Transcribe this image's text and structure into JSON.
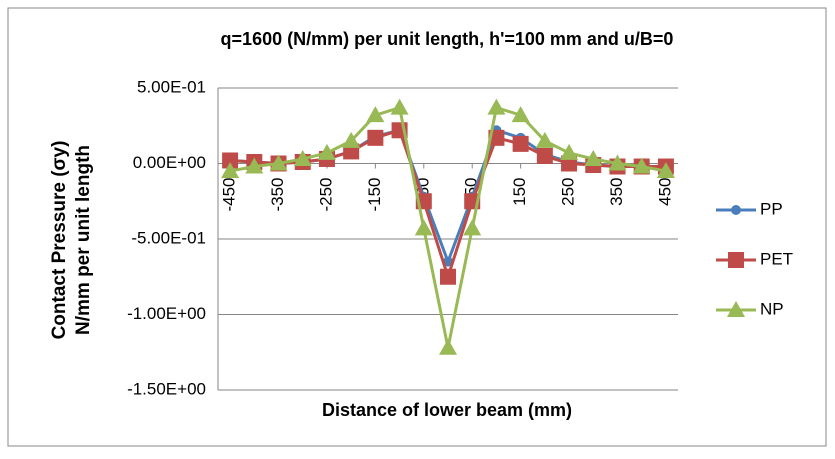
{
  "chart_data": {
    "type": "line",
    "title": "q=1600 (N/mm) per unit length, h'=100 mm and u/B=0",
    "y_label": [
      "Contact Pressure (σy)",
      "N/mm per unit length"
    ],
    "x_label": "Distance of lower beam (mm)",
    "x": [
      -450,
      -400,
      -350,
      -300,
      -250,
      -200,
      -150,
      -100,
      -50,
      0,
      50,
      100,
      150,
      200,
      250,
      300,
      350,
      400,
      450
    ],
    "xlim": [
      -475,
      475
    ],
    "xticks": [
      -450,
      -350,
      -250,
      -150,
      -50,
      50,
      150,
      250,
      350,
      450
    ],
    "ylim": [
      -1.5,
      0.5
    ],
    "yticks": [
      {
        "value": -1.5,
        "label": "-1.50E+00"
      },
      {
        "value": -1,
        "label": "-1.00E+00"
      },
      {
        "value": -0.5,
        "label": "-5.00E-01"
      },
      {
        "value": 0,
        "label": "0.00E+00"
      },
      {
        "value": 0.5,
        "label": "5.00E-01"
      }
    ],
    "grid": true,
    "legend": "right",
    "series": [
      {
        "name": "PP",
        "color": "#4a7ebb",
        "marker": "circle",
        "values": [
          0.02,
          0.01,
          0,
          0.01,
          0.03,
          0.08,
          0.18,
          0.22,
          -0.22,
          -0.65,
          -0.22,
          0.22,
          0.17,
          0.06,
          0.01,
          -0.01,
          -0.02,
          -0.02,
          -0.02
        ]
      },
      {
        "name": "PET",
        "color": "#be4b48",
        "marker": "square",
        "values": [
          0.02,
          0.01,
          0,
          0.01,
          0.03,
          0.08,
          0.17,
          0.22,
          -0.25,
          -0.75,
          -0.25,
          0.17,
          0.13,
          0.05,
          0,
          -0.01,
          -0.02,
          -0.02,
          -0.02
        ]
      },
      {
        "name": "NP",
        "color": "#98b954",
        "marker": "triangle",
        "values": [
          -0.05,
          -0.02,
          0,
          0.03,
          0.07,
          0.15,
          0.32,
          0.37,
          -0.43,
          -1.22,
          -0.43,
          0.37,
          0.32,
          0.15,
          0.07,
          0.03,
          0,
          -0.02,
          -0.05
        ]
      }
    ]
  }
}
